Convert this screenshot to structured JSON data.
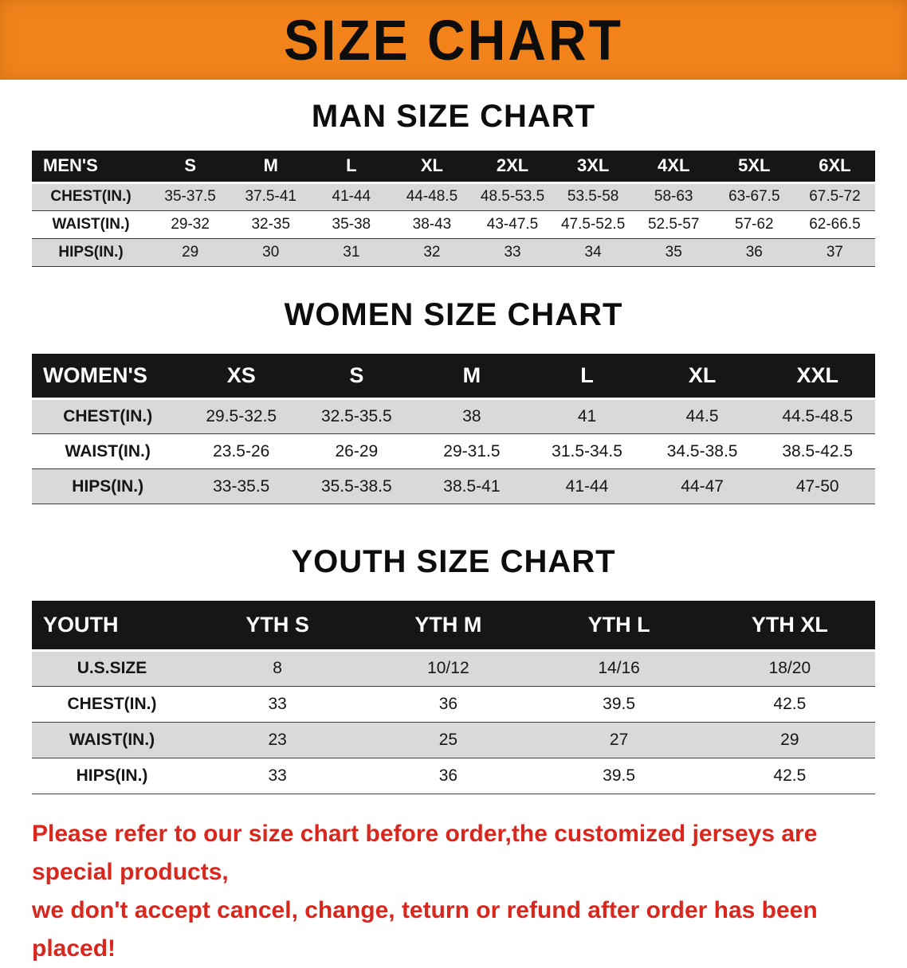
{
  "banner": {
    "title": "SIZE CHART"
  },
  "men": {
    "heading": "MAN SIZE CHART",
    "label": "MEN'S",
    "sizes": [
      "S",
      "M",
      "L",
      "XL",
      "2XL",
      "3XL",
      "4XL",
      "5XL",
      "6XL"
    ],
    "rows": [
      {
        "label": "CHEST(IN.)",
        "values": [
          "35-37.5",
          "37.5-41",
          "41-44",
          "44-48.5",
          "48.5-53.5",
          "53.5-58",
          "58-63",
          "63-67.5",
          "67.5-72"
        ]
      },
      {
        "label": "WAIST(IN.)",
        "values": [
          "29-32",
          "32-35",
          "35-38",
          "38-43",
          "43-47.5",
          "47.5-52.5",
          "52.5-57",
          "57-62",
          "62-66.5"
        ]
      },
      {
        "label": "HIPS(IN.)",
        "values": [
          "29",
          "30",
          "31",
          "32",
          "33",
          "34",
          "35",
          "36",
          "37"
        ]
      }
    ]
  },
  "women": {
    "heading": "WOMEN SIZE CHART",
    "label": "WOMEN'S",
    "sizes": [
      "XS",
      "S",
      "M",
      "L",
      "XL",
      "XXL"
    ],
    "rows": [
      {
        "label": "CHEST(IN.)",
        "values": [
          "29.5-32.5",
          "32.5-35.5",
          "38",
          "41",
          "44.5",
          "44.5-48.5"
        ]
      },
      {
        "label": "WAIST(IN.)",
        "values": [
          "23.5-26",
          "26-29",
          "29-31.5",
          "31.5-34.5",
          "34.5-38.5",
          "38.5-42.5"
        ]
      },
      {
        "label": "HIPS(IN.)",
        "values": [
          "33-35.5",
          "35.5-38.5",
          "38.5-41",
          "41-44",
          "44-47",
          "47-50"
        ]
      }
    ]
  },
  "youth": {
    "heading": "YOUTH SIZE CHART",
    "label": "YOUTH",
    "sizes": [
      "YTH S",
      "YTH M",
      "YTH L",
      "YTH XL"
    ],
    "rows": [
      {
        "label": "U.S.SIZE",
        "values": [
          "8",
          "10/12",
          "14/16",
          "18/20"
        ]
      },
      {
        "label": "CHEST(IN.)",
        "values": [
          "33",
          "36",
          "39.5",
          "42.5"
        ]
      },
      {
        "label": "WAIST(IN.)",
        "values": [
          "23",
          "25",
          "27",
          "29"
        ]
      },
      {
        "label": "HIPS(IN.)",
        "values": [
          "33",
          "36",
          "39.5",
          "42.5"
        ]
      }
    ]
  },
  "disclaimer": {
    "line1": "Please refer to our size chart before order,the customized jerseys are special products,",
    "line2": "we don't accept cancel, change, teturn or refund after order has been placed!"
  },
  "colors": {
    "banner_orange": "#F2831B",
    "table_header_black": "#161616",
    "row_gray": "#d9d9d9",
    "disclaimer_red": "#D9271E"
  }
}
